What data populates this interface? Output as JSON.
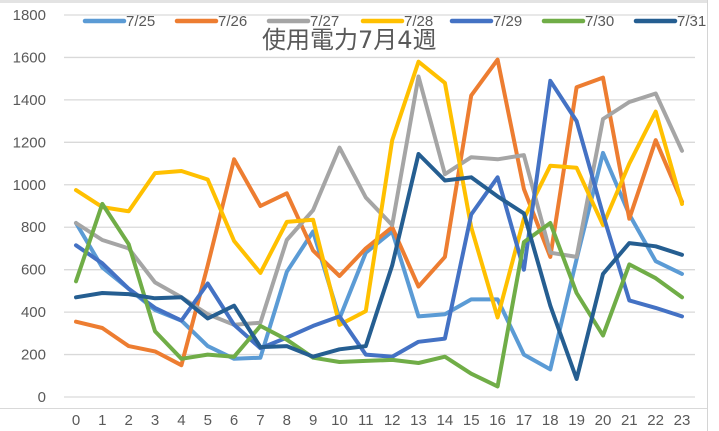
{
  "chart_data": {
    "type": "line",
    "title": "使用電力7月4週",
    "xlabel": "",
    "ylabel": "",
    "ylim": [
      0,
      1800
    ],
    "yticks": [
      0,
      200,
      400,
      600,
      800,
      1000,
      1200,
      1400,
      1600,
      1800
    ],
    "grid": true,
    "legend_position": "top",
    "x": [
      0,
      1,
      2,
      3,
      4,
      5,
      6,
      7,
      8,
      9,
      10,
      11,
      12,
      13,
      14,
      15,
      16,
      17,
      18,
      19,
      20,
      21,
      22,
      23
    ],
    "series": [
      {
        "name": "7/25",
        "color": "#5B9BD5",
        "values": [
          820,
          610,
          510,
          410,
          360,
          240,
          180,
          185,
          590,
          780,
          370,
          680,
          780,
          380,
          390,
          460,
          460,
          200,
          130,
          650,
          1150,
          860,
          640,
          580
        ]
      },
      {
        "name": "7/26",
        "color": "#ED7D31",
        "values": [
          355,
          325,
          240,
          215,
          150,
          620,
          1120,
          900,
          960,
          690,
          570,
          700,
          800,
          520,
          660,
          1420,
          1590,
          980,
          660,
          1460,
          1505,
          840,
          1210,
          920
        ]
      },
      {
        "name": "7/27",
        "color": "#A5A5A5",
        "values": [
          820,
          740,
          700,
          540,
          470,
          390,
          340,
          350,
          740,
          880,
          1175,
          940,
          810,
          1510,
          1050,
          1130,
          1120,
          1140,
          680,
          660,
          1310,
          1390,
          1430,
          1160
        ]
      },
      {
        "name": "7/28",
        "color": "#FFC000",
        "values": [
          975,
          895,
          875,
          1055,
          1065,
          1025,
          735,
          585,
          825,
          835,
          340,
          405,
          1210,
          1580,
          1480,
          800,
          375,
          840,
          1090,
          1080,
          810,
          1100,
          1345,
          910
        ]
      },
      {
        "name": "7/29",
        "color": "#4472C4",
        "values": [
          715,
          630,
          510,
          420,
          360,
          535,
          340,
          230,
          280,
          335,
          380,
          200,
          190,
          260,
          275,
          860,
          1035,
          600,
          1490,
          1300,
          860,
          455,
          420,
          380
        ]
      },
      {
        "name": "7/30",
        "color": "#70AD47",
        "values": [
          545,
          910,
          720,
          310,
          180,
          200,
          190,
          335,
          270,
          185,
          165,
          170,
          175,
          160,
          190,
          110,
          50,
          730,
          820,
          490,
          290,
          625,
          560,
          470
        ]
      },
      {
        "name": "7/31",
        "color": "#255E91",
        "values": [
          470,
          490,
          485,
          465,
          470,
          370,
          430,
          235,
          240,
          190,
          225,
          240,
          620,
          1145,
          1020,
          1035,
          945,
          865,
          430,
          85,
          580,
          725,
          710,
          670
        ]
      }
    ]
  },
  "colors": {
    "gridline": "#d9d9d9",
    "axis_text": "#595959"
  }
}
